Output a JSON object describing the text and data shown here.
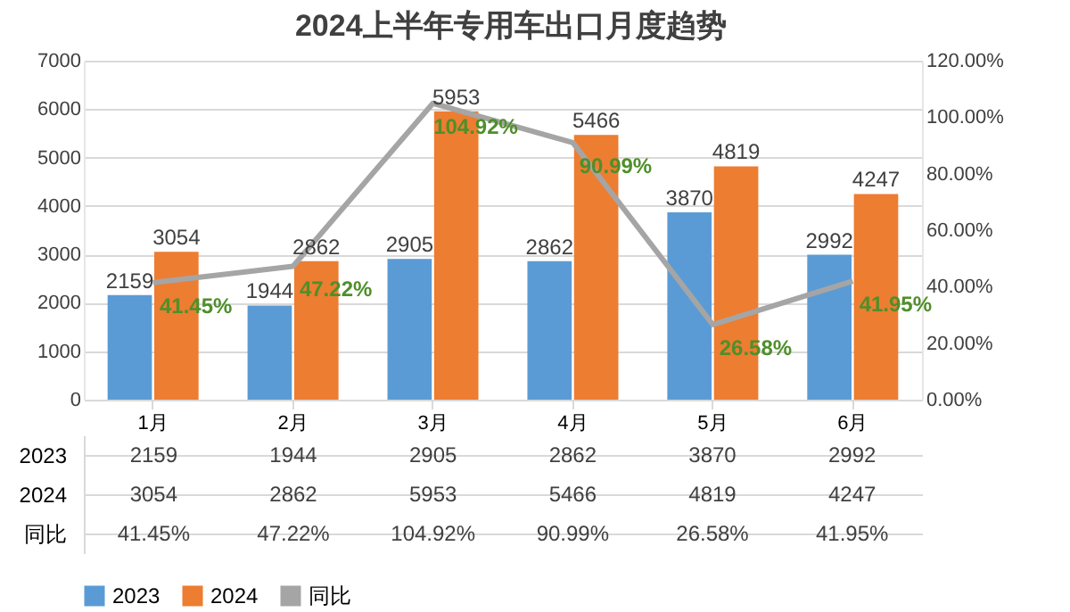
{
  "chart_data": {
    "type": "bar",
    "title": "2024上半年专用车出口月度趋势",
    "categories": [
      "1月",
      "2月",
      "3月",
      "4月",
      "5月",
      "6月"
    ],
    "series": [
      {
        "name": "2023",
        "color": "#5b9bd5",
        "values": [
          2159,
          1944,
          2905,
          2862,
          3870,
          2992
        ],
        "value_labels": [
          "2159",
          "1944",
          "2905",
          "2862",
          "3870",
          "2992"
        ]
      },
      {
        "name": "2024",
        "color": "#ed7d31",
        "values": [
          3054,
          2862,
          5953,
          5466,
          4819,
          4247
        ],
        "value_labels": [
          "3054",
          "2862",
          "5953",
          "5466",
          "4819",
          "4247"
        ]
      },
      {
        "name": "同比",
        "type": "line",
        "axis": "y2",
        "color": "#a5a5a5",
        "values": [
          41.45,
          47.22,
          104.92,
          90.99,
          26.58,
          41.95
        ],
        "value_labels": [
          "41.45%",
          "47.22%",
          "104.92%",
          "90.99%",
          "26.58%",
          "41.95%"
        ]
      }
    ],
    "ylim": [
      0,
      7000
    ],
    "yticks": [
      0,
      1000,
      2000,
      3000,
      4000,
      5000,
      6000,
      7000
    ],
    "y2lim": [
      0,
      120
    ],
    "y2ticks": [
      {
        "value": 0,
        "label": "0.00%"
      },
      {
        "value": 20,
        "label": "20.00%"
      },
      {
        "value": 40,
        "label": "40.00%"
      },
      {
        "value": 60,
        "label": "60.00%"
      },
      {
        "value": 80,
        "label": "80.00%"
      },
      {
        "value": 100,
        "label": "100.00%"
      },
      {
        "value": 120,
        "label": "120.00%"
      }
    ],
    "grid": "y",
    "legend": "bottom",
    "data_labels": true,
    "marker": "none",
    "line_style": "solid"
  }
}
